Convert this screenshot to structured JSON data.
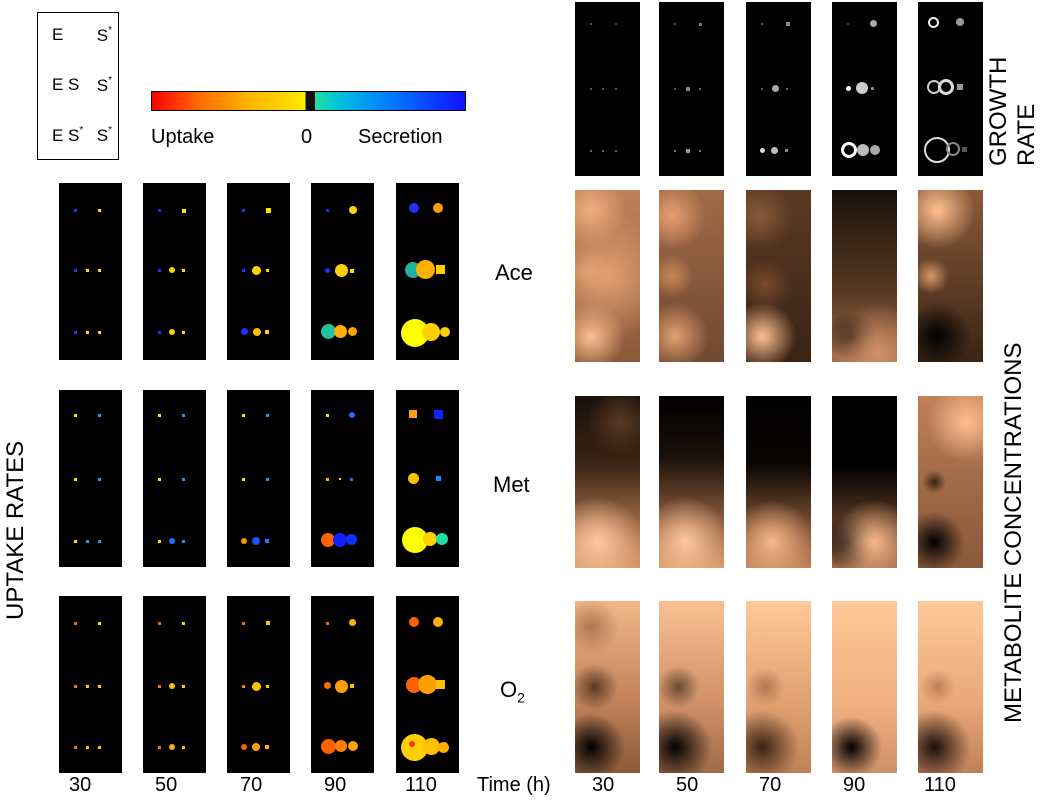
{
  "legend": {
    "rows": [
      {
        "left": "E",
        "right": "S*"
      },
      {
        "left": "E S",
        "right": "S*"
      },
      {
        "left": "E S*",
        "right": "S*"
      }
    ]
  },
  "colorbar": {
    "left_label": "Uptake",
    "center_label": "0",
    "right_label": "Secretion",
    "colors": [
      "#ff0000",
      "#ffb000",
      "#ffef00",
      "#20e0a0",
      "#1010ff"
    ]
  },
  "labels": {
    "uptake": "UPTAKE RATES",
    "metabolite": "METABOLITE CONCENTRATIONS",
    "growth_line1": "GROWTH",
    "growth_line2": "RATE",
    "time": "Time (h)"
  },
  "metabolites": [
    {
      "name": "Ace",
      "sub": ""
    },
    {
      "name": "Met",
      "sub": ""
    },
    {
      "name": "O",
      "sub": "2"
    }
  ],
  "times": [
    "30",
    "50",
    "70",
    "90",
    "110"
  ]
}
